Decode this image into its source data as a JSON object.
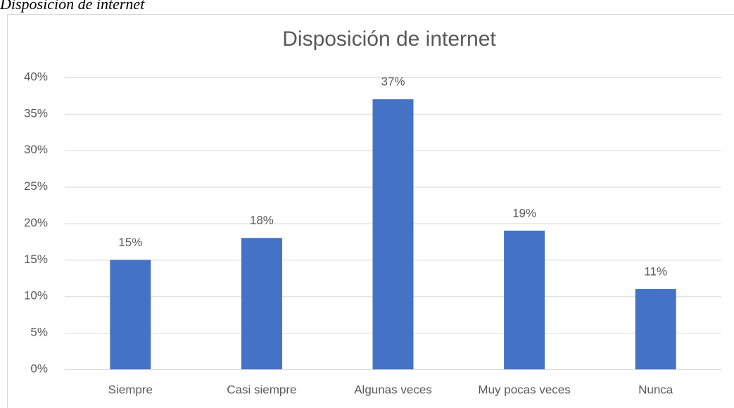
{
  "caption": "Disposición de internet",
  "chart_data": {
    "type": "bar",
    "title": "Disposición de internet",
    "categories": [
      "Siempre",
      "Casi siempre",
      "Algunas veces",
      "Muy pocas veces",
      "Nunca"
    ],
    "values": [
      15,
      18,
      37,
      19,
      11
    ],
    "value_labels": [
      "15%",
      "18%",
      "37%",
      "19%",
      "11%"
    ],
    "color": "#4472c4",
    "ylim": [
      0,
      40
    ],
    "yticks": [
      {
        "value": 0,
        "label": "0%"
      },
      {
        "value": 5,
        "label": "5%"
      },
      {
        "value": 10,
        "label": "10%"
      },
      {
        "value": 15,
        "label": "15%"
      },
      {
        "value": 20,
        "label": "20%"
      },
      {
        "value": 25,
        "label": "25%"
      },
      {
        "value": 30,
        "label": "30%"
      },
      {
        "value": 35,
        "label": "35%"
      },
      {
        "value": 40,
        "label": "40%"
      }
    ],
    "grid": true
  }
}
